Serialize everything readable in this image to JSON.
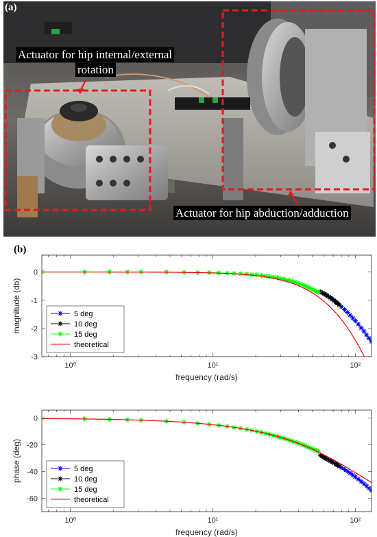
{
  "panels": {
    "a": "(a)",
    "b": "(b)"
  },
  "photo": {
    "callout_rotation_line1": "Actuator for hip internal/external",
    "callout_rotation_line2": "rotation",
    "callout_abduction": "Actuator for hip abduction/adduction",
    "box_color": "#e8181c"
  },
  "chart_data": [
    {
      "type": "line",
      "xscale": "log",
      "xlim": [
        0.63,
        130
      ],
      "ylim": [
        -3,
        0.6
      ],
      "xticks": [
        1,
        10,
        100
      ],
      "xtick_labels": [
        "10⁰",
        "10¹",
        "10²"
      ],
      "yticks": [
        0,
        -1,
        -2,
        -3
      ],
      "ytick_labels": [
        "0",
        "-1",
        "-2",
        "-3"
      ],
      "xlabel": "frequency (rad/s)",
      "ylabel": "magnitude (db)",
      "legend_location": "lower-left",
      "series": [
        {
          "name": "5 deg",
          "color": "#0000ff",
          "marker": "asterisk",
          "x": [
            59,
            62,
            65,
            68,
            71,
            74,
            77,
            80,
            84,
            88,
            92,
            96,
            100,
            105,
            110,
            115,
            120,
            125,
            130
          ],
          "y": [
            -0.74,
            -0.8,
            -0.87,
            -0.94,
            -1.01,
            -1.09,
            -1.16,
            -1.23,
            -1.33,
            -1.43,
            -1.53,
            -1.63,
            -1.73,
            -1.85,
            -1.98,
            -2.1,
            -2.23,
            -2.35,
            -2.47
          ]
        },
        {
          "name": "10 deg",
          "color": "#000000",
          "marker": "asterisk",
          "x": [
            57,
            59,
            61,
            63,
            65,
            67,
            69,
            71,
            73,
            75,
            77
          ],
          "y": [
            -0.7,
            -0.74,
            -0.78,
            -0.83,
            -0.87,
            -0.91,
            -0.96,
            -1.01,
            -1.06,
            -1.11,
            -1.16
          ]
        },
        {
          "name": "15 deg",
          "color": "#00ff00",
          "marker": "asterisk",
          "x": [
            0.63,
            1.26,
            1.88,
            2.51,
            3.14,
            4.71,
            6.28,
            7.85,
            9.42,
            11,
            12.6,
            14.1,
            15.7,
            17.3,
            18.8,
            20.4,
            22,
            23.6,
            25.1,
            26.7,
            28.3,
            29.8,
            31.4,
            33,
            34.6,
            36.1,
            37.7,
            39.3,
            40.8,
            42.4,
            44,
            45.6,
            47.1,
            48.7,
            50.3,
            51.8,
            53.4,
            55
          ],
          "y": [
            0,
            0,
            0,
            0,
            0,
            0,
            -0.01,
            -0.02,
            -0.02,
            -0.03,
            -0.04,
            -0.05,
            -0.06,
            -0.07,
            -0.09,
            -0.1,
            -0.12,
            -0.14,
            -0.16,
            -0.18,
            -0.2,
            -0.23,
            -0.25,
            -0.28,
            -0.3,
            -0.33,
            -0.36,
            -0.39,
            -0.42,
            -0.45,
            -0.48,
            -0.52,
            -0.55,
            -0.58,
            -0.62,
            -0.65,
            -0.69,
            -0.72
          ]
        },
        {
          "name": "theoretical",
          "color": "#ff0000",
          "marker": "none",
          "tau": 0.00862,
          "kind": "magnitude"
        }
      ]
    },
    {
      "type": "line",
      "xscale": "log",
      "xlim": [
        0.63,
        130
      ],
      "ylim": [
        -70,
        6
      ],
      "xticks": [
        1,
        10,
        100
      ],
      "xtick_labels": [
        "10⁰",
        "10¹",
        "10²"
      ],
      "yticks": [
        0,
        -20,
        -40,
        -60
      ],
      "ytick_labels": [
        "0",
        "-20",
        "-40",
        "-60"
      ],
      "xlabel": "frequency (rad/s)",
      "ylabel": "phase (deg)",
      "legend_location": "lower-left",
      "series": [
        {
          "name": "5 deg",
          "color": "#0000ff",
          "marker": "asterisk",
          "x": [
            59,
            62,
            65,
            68,
            71,
            74,
            77,
            80,
            84,
            88,
            92,
            96,
            100,
            105,
            110,
            115,
            120,
            125,
            130
          ],
          "y": [
            -28.8,
            -30.1,
            -31.3,
            -32.4,
            -33.6,
            -34.7,
            -35.9,
            -37,
            -38.4,
            -39.8,
            -41.2,
            -42.6,
            -44,
            -45.7,
            -47.4,
            -49.1,
            -50.8,
            -52.5,
            -54.2
          ]
        },
        {
          "name": "10 deg",
          "color": "#000000",
          "marker": "asterisk",
          "x": [
            57,
            59,
            61,
            63,
            65,
            67,
            69,
            71,
            73,
            75,
            77
          ],
          "y": [
            -27.9,
            -28.8,
            -29.7,
            -30.5,
            -31.3,
            -32,
            -32.8,
            -33.6,
            -34.3,
            -35.1,
            -35.9
          ]
        },
        {
          "name": "15 deg",
          "color": "#00ff00",
          "marker": "asterisk",
          "x": [
            0.63,
            1.26,
            1.88,
            2.51,
            3.14,
            4.71,
            6.28,
            7.85,
            9.42,
            11,
            12.6,
            14.1,
            15.7,
            17.3,
            18.8,
            20.4,
            22,
            23.6,
            25.1,
            26.7,
            28.3,
            29.8,
            31.4,
            33,
            34.6,
            36.1,
            37.7,
            39.3,
            40.8,
            42.4,
            44,
            45.6,
            47.1,
            48.7,
            50.3,
            51.8,
            53.4,
            55
          ],
          "y": [
            -0.3,
            -0.6,
            -0.9,
            -1.2,
            -1.6,
            -2.3,
            -3.1,
            -3.9,
            -4.6,
            -5.4,
            -6.2,
            -7,
            -7.7,
            -8.5,
            -9.2,
            -10,
            -10.7,
            -11.5,
            -12.2,
            -12.9,
            -13.7,
            -14.4,
            -15.1,
            -15.8,
            -16.5,
            -17.2,
            -17.9,
            -18.5,
            -19.2,
            -19.9,
            -20.5,
            -21.2,
            -21.8,
            -22.4,
            -23.1,
            -23.7,
            -24.3,
            -24.9
          ]
        },
        {
          "name": "theoretical",
          "color": "#ff0000",
          "marker": "none",
          "tau": 0.00862,
          "kind": "phase"
        }
      ]
    }
  ]
}
